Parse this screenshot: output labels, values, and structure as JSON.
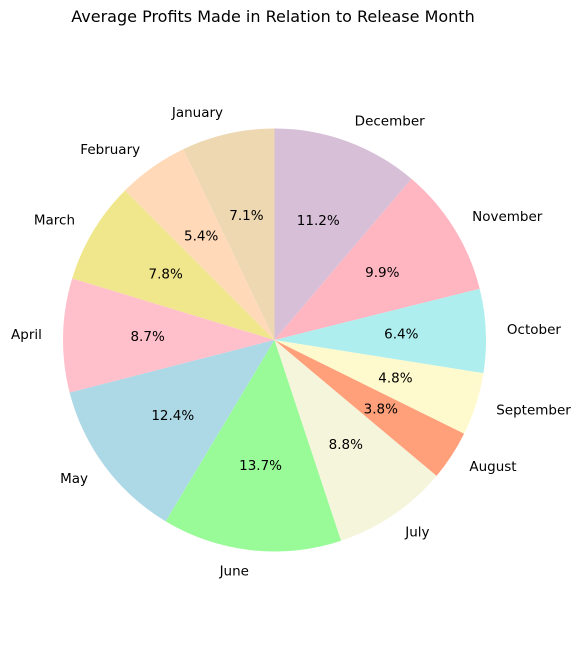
{
  "chart_data": {
    "type": "pie",
    "title": "Average Profits Made in Relation to Release Month",
    "start_angle_deg": 90,
    "direction": "counterclockwise",
    "slices": [
      {
        "label": "January",
        "value": 7.1,
        "pct_label": "7.1%",
        "color": "#EED8B2"
      },
      {
        "label": "February",
        "value": 5.4,
        "pct_label": "5.4%",
        "color": "#FFD9B8"
      },
      {
        "label": "March",
        "value": 7.8,
        "pct_label": "7.8%",
        "color": "#F0E68C"
      },
      {
        "label": "April",
        "value": 8.7,
        "pct_label": "8.7%",
        "color": "#FFC0CB"
      },
      {
        "label": "May",
        "value": 12.4,
        "pct_label": "12.4%",
        "color": "#ADD8E6"
      },
      {
        "label": "June",
        "value": 13.7,
        "pct_label": "13.7%",
        "color": "#98FB98"
      },
      {
        "label": "July",
        "value": 8.8,
        "pct_label": "8.8%",
        "color": "#F5F5DC"
      },
      {
        "label": "August",
        "value": 3.8,
        "pct_label": "3.8%",
        "color": "#FFA07A"
      },
      {
        "label": "September",
        "value": 4.8,
        "pct_label": "4.8%",
        "color": "#FFFACD"
      },
      {
        "label": "October",
        "value": 6.4,
        "pct_label": "6.4%",
        "color": "#AFEEEE"
      },
      {
        "label": "November",
        "value": 9.9,
        "pct_label": "9.9%",
        "color": "#FFB6C1"
      },
      {
        "label": "December",
        "value": 11.2,
        "pct_label": "11.2%",
        "color": "#D8BFD8"
      }
    ]
  }
}
